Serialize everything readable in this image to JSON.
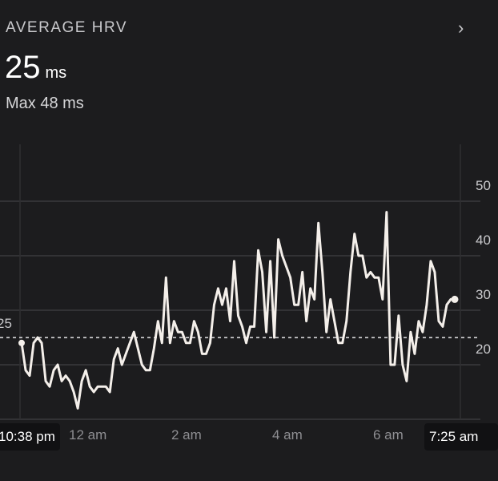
{
  "header": {
    "title": "AVERAGE HRV",
    "value": "25",
    "unit": "ms",
    "max_label": "Max 48 ms"
  },
  "chart_data": {
    "type": "line",
    "ylim": [
      10,
      50
    ],
    "y_ticks": [
      "50",
      "40",
      "30",
      "20"
    ],
    "average": 25,
    "average_label": "25",
    "x_tick_labels": [
      "12 am",
      "2 am",
      "4 am",
      "6 am"
    ],
    "start_label": "10:38 pm",
    "end_label": "7:25 am",
    "values": [
      24,
      19,
      18,
      24,
      25,
      24,
      17,
      16,
      19,
      20,
      17,
      18,
      17,
      15,
      12,
      17,
      19,
      16,
      15,
      16,
      16,
      16,
      15,
      21,
      23,
      20,
      22,
      24,
      26,
      23,
      20,
      19,
      19,
      23,
      28,
      24,
      36,
      24,
      28,
      26,
      26,
      24,
      24,
      28,
      26,
      22,
      22,
      24,
      31,
      34,
      31,
      34,
      28,
      39,
      29,
      27,
      24,
      27,
      27,
      41,
      37,
      26,
      39,
      25,
      43,
      40,
      38,
      36,
      31,
      31,
      37,
      28,
      34,
      32,
      46,
      37,
      26,
      32,
      28,
      24,
      24,
      28,
      37,
      44,
      40,
      40,
      36,
      37,
      36,
      36,
      32,
      48,
      20,
      20,
      29,
      20,
      17,
      26,
      22,
      28,
      26,
      31,
      39,
      37,
      28,
      27,
      31,
      32,
      32
    ]
  }
}
